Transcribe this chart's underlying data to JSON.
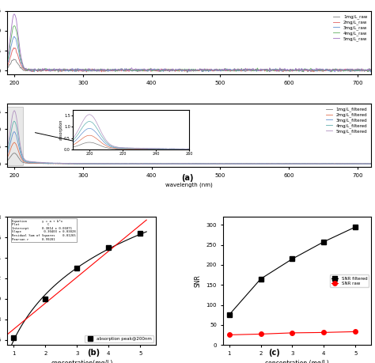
{
  "raw_colors": [
    "#7f7f7f",
    "#e06060",
    "#6090d0",
    "#60b060",
    "#a070c0"
  ],
  "filtered_colors": [
    "#7f7f7f",
    "#e07050",
    "#6090d0",
    "#60b0b0",
    "#b090c0"
  ],
  "raw_labels": [
    "1mg/L_raw",
    "2mg/L_raw",
    "3mg/L_raw",
    "4mg/L_raw",
    "5mg/L_raw"
  ],
  "filtered_labels": [
    "1mg/L_filtered",
    "2mg/L_filtered",
    "3mg/L_filtered",
    "4mg/L_filtered",
    "5mg/L_filtered"
  ],
  "conc_x": [
    1,
    2,
    3,
    4,
    5
  ],
  "abs_y": [
    0.62,
    1.0,
    1.3,
    1.5,
    1.64
  ],
  "snr_filtered": [
    75,
    165,
    215,
    258,
    295
  ],
  "snr_raw": [
    25,
    27,
    30,
    31,
    33
  ],
  "label_a": "(a)",
  "label_b": "(b)",
  "label_c": "(c)"
}
